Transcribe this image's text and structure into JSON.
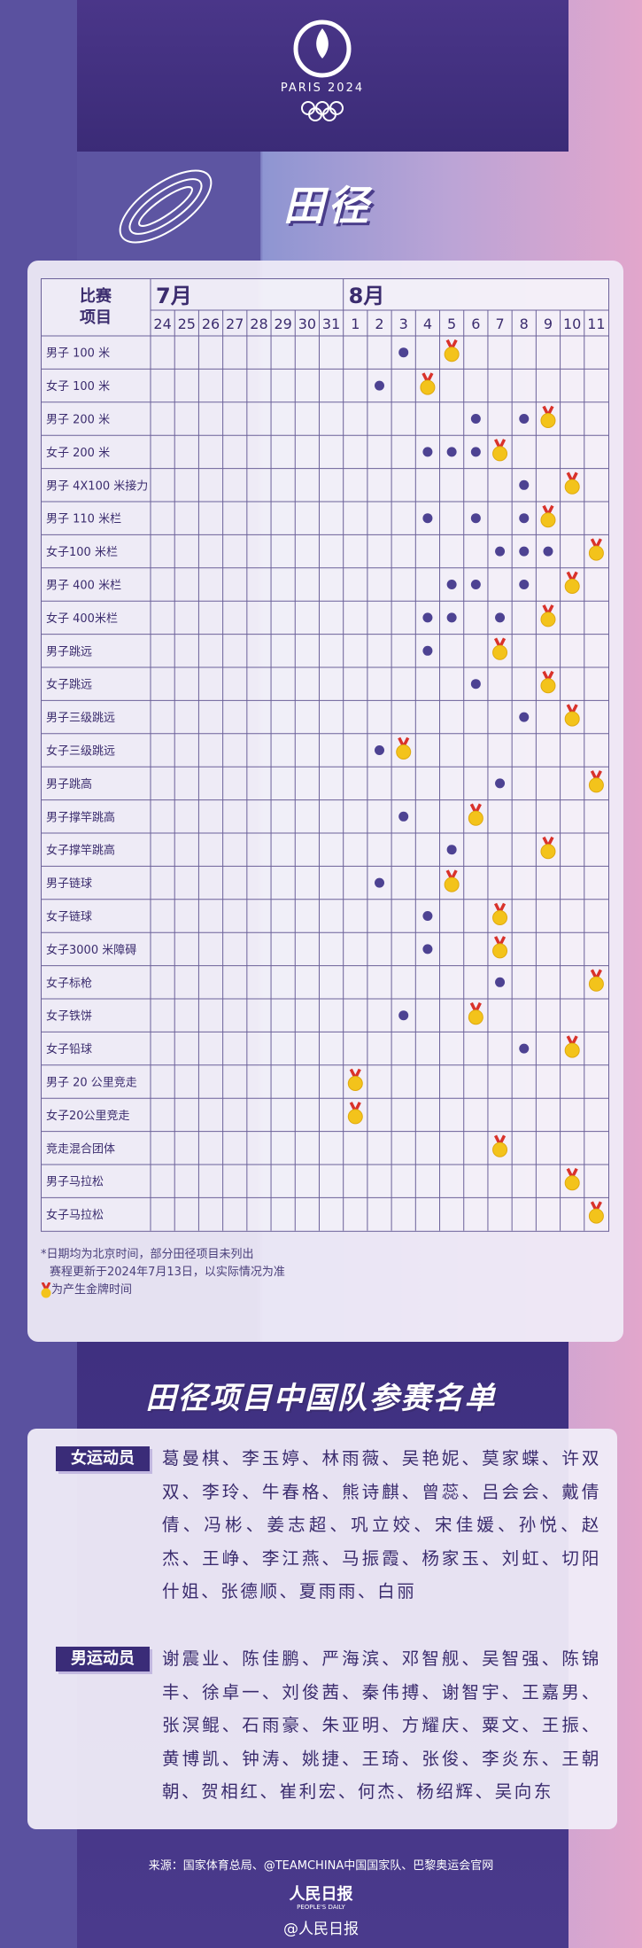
{
  "header": {
    "logo_text": "PARIS 2024",
    "title": "田径"
  },
  "schedule": {
    "corner": [
      "比赛",
      "项目"
    ],
    "months": [
      {
        "label": "7月",
        "days": [
          24,
          25,
          26,
          27,
          28,
          29,
          30,
          31
        ]
      },
      {
        "label": "8月",
        "days": [
          1,
          2,
          3,
          4,
          5,
          6,
          7,
          8,
          9,
          10,
          11
        ]
      }
    ],
    "events": [
      {
        "name": "男子 100 米",
        "dots": [
          3
        ],
        "medals": [
          5
        ]
      },
      {
        "name": "女子 100 米",
        "dots": [
          2
        ],
        "medals": [
          4
        ]
      },
      {
        "name": "男子 200 米",
        "dots": [
          6,
          8
        ],
        "medals": [
          9
        ]
      },
      {
        "name": "女子 200 米",
        "dots": [
          4,
          5,
          6
        ],
        "medals": [
          7
        ]
      },
      {
        "name": "男子 4X100 米接力",
        "dots": [
          8
        ],
        "medals": [
          10
        ]
      },
      {
        "name": "男子 110 米栏",
        "dots": [
          4,
          6,
          8
        ],
        "medals": [
          9
        ]
      },
      {
        "name": "女子100 米栏",
        "dots": [
          7,
          8,
          9
        ],
        "medals": [
          11
        ]
      },
      {
        "name": "男子 400 米栏",
        "dots": [
          5,
          6,
          8
        ],
        "medals": [
          10
        ]
      },
      {
        "name": "女子 400米栏",
        "dots": [
          4,
          5,
          7
        ],
        "medals": [
          9
        ]
      },
      {
        "name": "男子跳远",
        "dots": [
          4
        ],
        "medals": [
          7
        ]
      },
      {
        "name": "女子跳远",
        "dots": [
          6
        ],
        "medals": [
          9
        ]
      },
      {
        "name": "男子三级跳远",
        "dots": [
          8
        ],
        "medals": [
          10
        ]
      },
      {
        "name": "女子三级跳远",
        "dots": [
          2
        ],
        "medals": [
          3
        ]
      },
      {
        "name": "男子跳高",
        "dots": [
          7
        ],
        "medals": [
          11
        ]
      },
      {
        "name": "男子撑竿跳高",
        "dots": [
          3
        ],
        "medals": [
          6
        ]
      },
      {
        "name": "女子撑竿跳高",
        "dots": [
          5
        ],
        "medals": [
          9
        ]
      },
      {
        "name": "男子链球",
        "dots": [
          2
        ],
        "medals": [
          5
        ]
      },
      {
        "name": "女子链球",
        "dots": [
          4
        ],
        "medals": [
          7
        ]
      },
      {
        "name": "女子3000 米障碍",
        "dots": [
          4
        ],
        "medals": [
          7
        ]
      },
      {
        "name": "女子标枪",
        "dots": [
          7
        ],
        "medals": [
          11
        ]
      },
      {
        "name": "女子铁饼",
        "dots": [
          3
        ],
        "medals": [
          6
        ]
      },
      {
        "name": "女子铅球",
        "dots": [
          8
        ],
        "medals": [
          10
        ]
      },
      {
        "name": "男子 20 公里竞走",
        "dots": [],
        "medals": [
          1
        ]
      },
      {
        "name": "女子20公里竞走",
        "dots": [],
        "medals": [
          1
        ]
      },
      {
        "name": "竞走混合团体",
        "dots": [],
        "medals": [
          7
        ]
      },
      {
        "name": "男子马拉松",
        "dots": [],
        "medals": [
          10
        ]
      },
      {
        "name": "女子马拉松",
        "dots": [],
        "medals": [
          11
        ]
      }
    ],
    "notes": [
      "*日期均为北京时间，部分田径项目未列出",
      "赛程更新于2024年7月13日，以实际情况为准"
    ],
    "legend_text": "为产生金牌时间"
  },
  "roster": {
    "title": "田径项目中国队参赛名单",
    "women": {
      "label": "女运动员",
      "names": "葛曼棋、李玉婷、林雨薇、吴艳妮、莫家蝶、许双双、李玲、牛春格、熊诗麒、曾蕊、吕会会、戴倩倩、冯彬、姜志超、巩立姣、宋佳媛、孙悦、赵杰、王峥、李江燕、马振霞、杨家玉、刘虹、切阳什姐、张德顺、夏雨雨、白丽"
    },
    "men": {
      "label": "男运动员",
      "names": "谢震业、陈佳鹏、严海滨、邓智舰、吴智强、陈锦丰、徐卓一、刘俊茜、秦伟搏、谢智宇、王嘉男、张溟鲲、石雨豪、朱亚明、方耀庆、粟文、王振、黄博凯、钟涛、姚捷、王琦、张俊、李炎东、王朝朝、贺相红、崔利宏、何杰、杨绍辉、吴向东"
    }
  },
  "footer": {
    "source": "来源：国家体育总局、@TEAMCHINA中国国家队、巴黎奥运会官网",
    "logo": "人民日报",
    "logo_en": "PEOPLE'S DAILY",
    "handle": "@人民日报"
  }
}
